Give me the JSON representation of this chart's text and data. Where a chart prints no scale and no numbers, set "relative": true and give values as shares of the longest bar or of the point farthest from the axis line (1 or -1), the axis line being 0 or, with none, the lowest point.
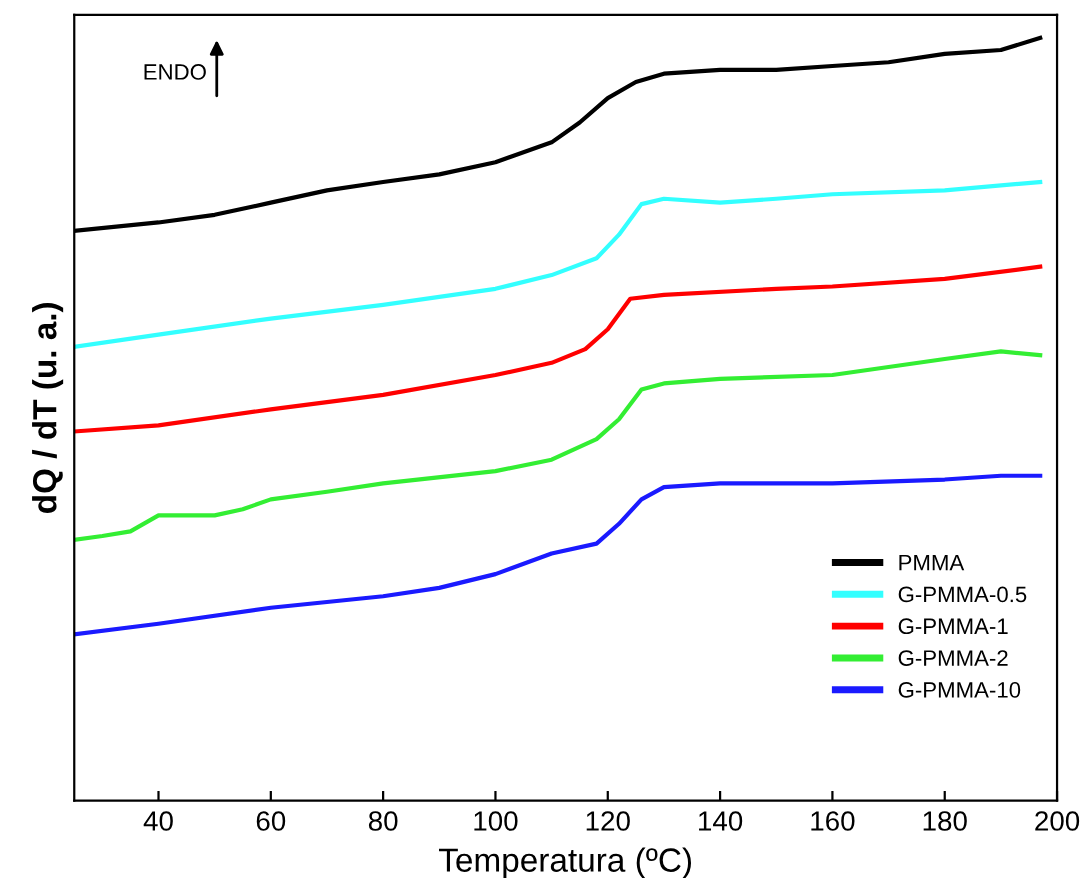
{
  "chart_data": {
    "type": "line",
    "relative": true,
    "xlabel": "Temperatura (ºC)",
    "ylabel": "dQ / dT (u. a.)",
    "xlim": [
      25,
      200
    ],
    "xticks": [
      40,
      60,
      80,
      100,
      120,
      140,
      160,
      180,
      200
    ],
    "legend": "bottom right",
    "line_style": "solid",
    "annotations": [
      "ENDO"
    ],
    "series": [
      {
        "name": "PMMA",
        "color": "#000000",
        "x": [
          25,
          40,
          50,
          60,
          70,
          80,
          90,
          100,
          110,
          115,
          120,
          125,
          130,
          140,
          150,
          160,
          170,
          180,
          190,
          197
        ],
        "values": [
          0.747,
          0.758,
          0.768,
          0.784,
          0.8,
          0.811,
          0.821,
          0.837,
          0.863,
          0.889,
          0.921,
          0.942,
          0.953,
          0.958,
          0.958,
          0.963,
          0.968,
          0.979,
          0.984,
          1
        ]
      },
      {
        "name": "G-PMMA-0.5",
        "color": "#33ffff",
        "x": [
          25,
          40,
          60,
          80,
          100,
          110,
          118,
          122,
          126,
          130,
          140,
          150,
          160,
          180,
          197
        ],
        "values": [
          0.595,
          0.611,
          0.632,
          0.65,
          0.671,
          0.689,
          0.711,
          0.742,
          0.782,
          0.789,
          0.784,
          0.789,
          0.795,
          0.8,
          0.811
        ]
      },
      {
        "name": "G-PMMA-1",
        "color": "#ff0000",
        "x": [
          25,
          40,
          60,
          80,
          100,
          110,
          116,
          120,
          124,
          130,
          150,
          160,
          180,
          197
        ],
        "values": [
          0.484,
          0.492,
          0.513,
          0.532,
          0.558,
          0.574,
          0.592,
          0.618,
          0.658,
          0.663,
          0.671,
          0.674,
          0.684,
          0.7
        ]
      },
      {
        "name": "G-PMMA-2",
        "color": "#33ee33",
        "x": [
          25,
          30,
          35,
          40,
          50,
          55,
          60,
          70,
          80,
          100,
          110,
          118,
          122,
          126,
          130,
          140,
          160,
          180,
          190,
          197
        ],
        "values": [
          0.342,
          0.347,
          0.353,
          0.374,
          0.374,
          0.382,
          0.395,
          0.405,
          0.416,
          0.432,
          0.447,
          0.474,
          0.5,
          0.539,
          0.547,
          0.553,
          0.558,
          0.579,
          0.589,
          0.584
        ]
      },
      {
        "name": "G-PMMA-10",
        "color": "#1a1aff",
        "x": [
          25,
          40,
          60,
          80,
          90,
          100,
          110,
          118,
          122,
          126,
          130,
          140,
          160,
          180,
          190,
          197
        ],
        "values": [
          0.218,
          0.232,
          0.253,
          0.268,
          0.279,
          0.297,
          0.324,
          0.337,
          0.363,
          0.395,
          0.411,
          0.416,
          0.416,
          0.421,
          0.426,
          0.426
        ]
      }
    ]
  }
}
